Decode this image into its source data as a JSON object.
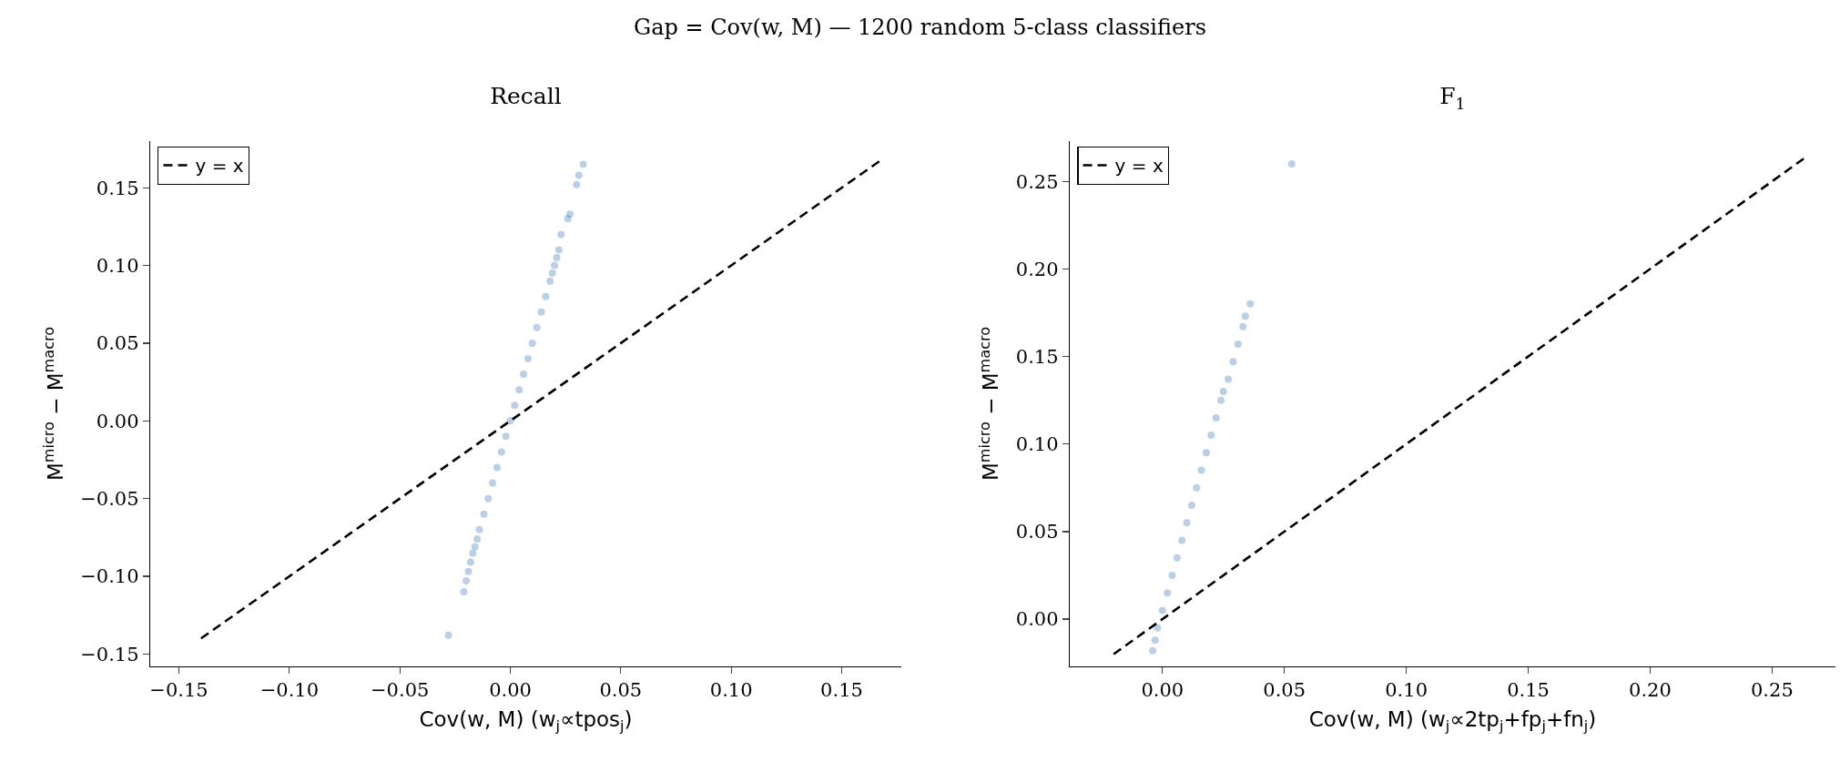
{
  "chart_data": [
    {
      "type": "scatter",
      "title": "Recall",
      "annotations": [
        "Gap = Cov(w, M) — 1200 random 5-class classifiers"
      ],
      "xlabel": "Cov(w, M) (w$_{j}$∝tpos$_{j}$)",
      "ylabel": "M$^{micro}$ − M$^{macro}$",
      "xlim": [
        -0.163,
        0.177
      ],
      "ylim": [
        -0.158,
        0.18
      ],
      "xticks": [
        {
          "value": -0.15,
          "label": "−0.15"
        },
        {
          "value": -0.1,
          "label": "−0.10"
        },
        {
          "value": -0.05,
          "label": "−0.05"
        },
        {
          "value": 0,
          "label": "0.00"
        },
        0.05,
        {
          "value": 0.1,
          "label": "0.10"
        },
        0.15
      ],
      "yticks": [
        {
          "value": -0.15,
          "label": "−0.15"
        },
        {
          "value": -0.1,
          "label": "−0.10"
        },
        {
          "value": -0.05,
          "label": "−0.05"
        },
        {
          "value": 0,
          "label": "0.00"
        },
        0.05,
        {
          "value": 0.1,
          "label": "0.10"
        },
        0.15
      ],
      "grid": false,
      "legend": "top left",
      "marker": "circle",
      "series": [
        {
          "color": "#1f64ad",
          "x": [
            -0.028,
            -0.021,
            -0.02,
            -0.019,
            -0.018,
            -0.017,
            -0.016,
            -0.015,
            -0.014,
            -0.012,
            -0.01,
            -0.008,
            -0.006,
            -0.004,
            -0.002,
            0,
            0.002,
            0.004,
            0.006,
            0.008,
            0.01,
            0.012,
            0.014,
            0.016,
            0.018,
            0.019,
            0.02,
            0.021,
            0.022,
            0.023,
            0.026,
            0.027,
            0.03,
            0.031,
            0.033
          ],
          "values": [
            -0.138,
            -0.11,
            -0.103,
            -0.097,
            -0.091,
            -0.085,
            -0.081,
            -0.076,
            -0.07,
            -0.06,
            -0.05,
            -0.04,
            -0.03,
            -0.02,
            -0.01,
            0,
            0.01,
            0.02,
            0.03,
            0.04,
            0.05,
            0.06,
            0.07,
            0.08,
            0.09,
            0.095,
            0.1,
            0.105,
            0.11,
            0.12,
            0.13,
            0.133,
            0.152,
            0.158,
            0.165
          ]
        },
        {
          "type": "line",
          "name": "y = x",
          "color": "#000000",
          "line_style": "dashed",
          "marker": "none",
          "x": [
            -0.14,
            0.167
          ],
          "values": [
            -0.14,
            0.167
          ]
        }
      ]
    },
    {
      "type": "scatter",
      "title": "F$_{1}$",
      "xlabel": "Cov(w, M) (w$_{j}$∝2tp$_{j}$+fp$_{j}$+fn$_{j}$)",
      "ylabel": "M$^{micro}$ − M$^{macro}$",
      "xlim": [
        -0.038,
        0.276
      ],
      "ylim": [
        -0.027,
        0.273
      ],
      "xticks": [
        {
          "value": 0,
          "label": "0.00"
        },
        0.05,
        {
          "value": 0.1,
          "label": "0.10"
        },
        0.15,
        {
          "value": 0.2,
          "label": "0.20"
        },
        0.25
      ],
      "yticks": [
        {
          "value": 0,
          "label": "0.00"
        },
        0.05,
        {
          "value": 0.1,
          "label": "0.10"
        },
        0.15,
        {
          "value": 0.2,
          "label": "0.20"
        },
        0.25
      ],
      "grid": false,
      "legend": "top left",
      "marker": "circle",
      "series": [
        {
          "color": "#1f64ad",
          "x": [
            -0.004,
            -0.003,
            -0.002,
            0,
            0.002,
            0.004,
            0.006,
            0.008,
            0.01,
            0.012,
            0.014,
            0.016,
            0.018,
            0.02,
            0.022,
            0.024,
            0.025,
            0.027,
            0.029,
            0.031,
            0.033,
            0.034,
            0.036,
            0.053
          ],
          "values": [
            -0.018,
            -0.012,
            -0.005,
            0.005,
            0.015,
            0.025,
            0.035,
            0.045,
            0.055,
            0.065,
            0.075,
            0.085,
            0.095,
            0.105,
            0.115,
            0.125,
            0.13,
            0.137,
            0.147,
            0.157,
            0.167,
            0.173,
            0.18,
            0.26
          ]
        },
        {
          "type": "line",
          "name": "y = x",
          "color": "#000000",
          "line_style": "dashed",
          "marker": "none",
          "x": [
            -0.02,
            0.263
          ],
          "values": [
            -0.02,
            0.263
          ]
        }
      ]
    }
  ]
}
